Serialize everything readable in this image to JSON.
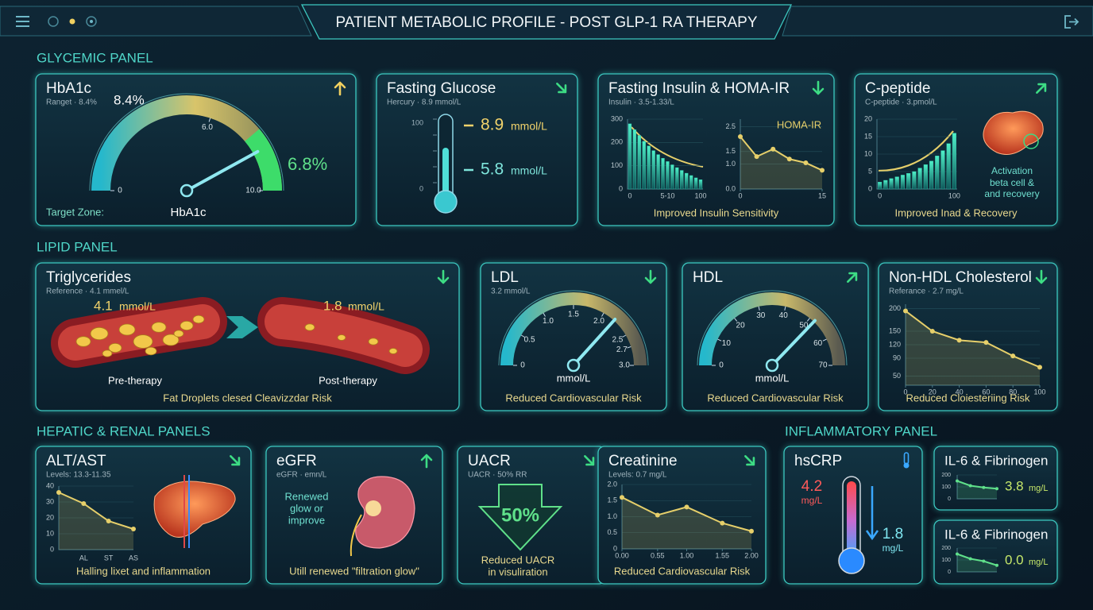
{
  "header": {
    "title": "PATIENT METABOLIC PROFILE - POST GLP-1 RA THERAPY"
  },
  "sections": [
    "GLYCEMIC PANEL",
    "LIPID PANEL",
    "HEPATIC & RENAL PANELS",
    "INFLAMMATORY PANEL"
  ],
  "cards": [
    {
      "title": "HbA1c",
      "subtitle": "Ranget · 8.4%",
      "labels": [
        "Target Zone:",
        "HbA1c"
      ],
      "charts": [
        {
          "type": "gauge",
          "ylim": [
            0,
            10
          ],
          "yticks": [
            0,
            {
              "value": 6,
              "label": "6.0"
            },
            {
              "value": 10,
              "label": "10.0"
            }
          ],
          "values": [
            8.4,
            6.8
          ],
          "value_labels": [
            "8.4%",
            "6.8%"
          ],
          "color": "#8fe8f0"
        }
      ]
    },
    {
      "title": "Fasting Glucose",
      "subtitle": "Hercury · 8.9 mmol/L",
      "labels": [
        "100",
        "0"
      ],
      "readings": [
        {
          "value": "8.9",
          "unit": "mmol/L"
        },
        {
          "value": "5.8",
          "unit": "mmol/L"
        }
      ]
    },
    {
      "title": "Fasting Insulin & HOMA-IR",
      "subtitle": "Insulin · 3.5-1.33/L",
      "footer": "Improved Insulin Sensitivity",
      "charts": [
        {
          "type": "bar",
          "categories": [
            "0",
            null,
            null,
            null,
            null,
            null,
            null,
            null,
            "5-10",
            null,
            null,
            null,
            null,
            null,
            null,
            "100"
          ],
          "values": [
            280,
            255,
            230,
            205,
            185,
            165,
            148,
            132,
            118,
            104,
            92,
            80,
            68,
            58,
            48,
            40
          ],
          "ylim": [
            0,
            300
          ],
          "yticks": [
            0,
            100,
            200,
            300
          ],
          "color": "#2fc2a8"
        },
        {
          "type": "line",
          "title": "HOMA-IR",
          "x": [
            0,
            3,
            6,
            9,
            12,
            15
          ],
          "values": [
            2.1,
            1.3,
            1.6,
            1.2,
            1.05,
            0.75
          ],
          "xlim": [
            0,
            15
          ],
          "xticks": [
            0,
            15
          ],
          "ylim": [
            0,
            2.8
          ],
          "yticks": [
            {
              "value": 0,
              "label": "0.0"
            },
            {
              "value": 1,
              "label": "1.0"
            },
            1.5,
            2.5
          ],
          "color": "#e6cf6a"
        }
      ]
    },
    {
      "title": "C-peptide",
      "subtitle": "C-peptide · 3.pmol/L",
      "labels": [
        "Activation",
        "beta cell &",
        "and recovery"
      ],
      "footer": "Improved Inad & Recovery",
      "charts": [
        {
          "type": "bar",
          "categories": [
            "0",
            null,
            null,
            null,
            null,
            null,
            null,
            null,
            null,
            null,
            null,
            null,
            null,
            "100"
          ],
          "values": [
            2,
            2.5,
            3,
            3.5,
            4,
            4.5,
            5,
            6,
            7,
            8,
            9.5,
            11,
            13,
            16
          ],
          "ylim": [
            0,
            20
          ],
          "yticks": [
            0,
            5,
            10,
            15,
            20
          ],
          "color": "#2fc2a8"
        }
      ]
    },
    {
      "title": "Triglycerides",
      "subtitle": "Reference · 4.1 mmel/L",
      "labels": [
        "Pre-therapy",
        "Post-therapy"
      ],
      "footer": "Fat Droplets clesed Cleavizzdar Risk",
      "readings": [
        {
          "value": "4.1",
          "unit": "mmol/L"
        },
        {
          "value": "1.8",
          "unit": "mmol/L"
        }
      ]
    },
    {
      "title": "LDL",
      "subtitle": "3.2 mmol/L",
      "labels": [
        "mmol/L"
      ],
      "footer": "Reduced Cardiovascular Risk",
      "charts": [
        {
          "type": "gauge",
          "ylim": [
            0,
            3
          ],
          "yticks": [
            0,
            0.5,
            {
              "value": 1,
              "label": "1.0"
            },
            1.5,
            {
              "value": 2,
              "label": "2.0"
            },
            2.5,
            2.7,
            {
              "value": 3,
              "label": "3.0"
            }
          ],
          "values": [
            2.2
          ],
          "color": "#8fe8f0"
        }
      ]
    },
    {
      "title": "HDL",
      "labels": [
        "mmol/L"
      ],
      "footer": "Reduced Cardiovascular Risk",
      "charts": [
        {
          "type": "gauge",
          "ylim": [
            0,
            70
          ],
          "yticks": [
            0,
            10,
            20,
            30,
            40,
            50,
            60,
            70
          ],
          "values": [
            52
          ],
          "color": "#8fe8f0"
        }
      ]
    },
    {
      "title": "Non-HDL Cholesterol",
      "subtitle": "Referance · 2.7 mg/L",
      "footer": "Reduced Cloiesteriing Risk",
      "charts": [
        {
          "type": "line",
          "x": [
            0,
            20,
            40,
            60,
            80,
            100
          ],
          "values": [
            195,
            150,
            130,
            125,
            95,
            70
          ],
          "xlim": [
            0,
            100
          ],
          "xticks": [
            0,
            20,
            40,
            60,
            80,
            100
          ],
          "ylim": [
            30,
            210
          ],
          "yticks": [
            50,
            90,
            120,
            150,
            200
          ],
          "color": "#e6cf6a"
        }
      ]
    },
    {
      "title": "ALT/AST",
      "subtitle": "Levels: 13.3-11.35",
      "footer": "Halling lixet and inflammation",
      "charts": [
        {
          "type": "line",
          "categories": [
            null,
            "AL",
            "ST",
            "AS"
          ],
          "values": [
            36,
            29,
            18,
            13
          ],
          "ylim": [
            0,
            40
          ],
          "yticks": [
            0,
            10,
            20,
            30,
            40
          ],
          "color": "#e6cf6a"
        }
      ]
    },
    {
      "title": "eGFR",
      "subtitle": "eGFR · emn/L",
      "labels": [
        "Renewed",
        "glow or",
        "improve"
      ],
      "footer": "Utill renewed \"filtration glow\""
    },
    {
      "title": "UACR",
      "subtitle": "UACR · 50% RR",
      "labels": [
        "50%",
        "Reduced UACR",
        "in visuliration"
      ]
    },
    {
      "title": "Creatinine",
      "subtitle": "Levels: 0.7 mg/L",
      "footer": "Reduced Cardiovascular Risk",
      "charts": [
        {
          "type": "line",
          "x": [
            0,
            0.55,
            1,
            1.55,
            2
          ],
          "values": [
            1.6,
            1.05,
            1.3,
            0.8,
            0.55
          ],
          "xlim": [
            0,
            2
          ],
          "xticks": [
            {
              "value": 0,
              "label": "0.00"
            },
            0.55,
            {
              "value": 1,
              "label": "1.00"
            },
            1.55,
            {
              "value": 2,
              "label": "2.00"
            }
          ],
          "ylim": [
            0,
            2
          ],
          "yticks": [
            0,
            0.5,
            {
              "value": 1,
              "label": "1.0"
            },
            1.5,
            {
              "value": 2,
              "label": "2.0"
            }
          ],
          "color": "#e6cf6a"
        }
      ]
    },
    {
      "title": "hsCRP",
      "readings": [
        {
          "value": "4.2",
          "unit": "mg/L"
        },
        {
          "value": "1.8",
          "unit": "mg/L"
        }
      ]
    },
    {
      "title": "IL-6 & Fibrinogen",
      "readings": [
        {
          "value": "3.8",
          "unit": "mg/L"
        }
      ],
      "charts": [
        {
          "type": "line",
          "categories": [
            null,
            null,
            null,
            null
          ],
          "values": [
            150,
            110,
            95,
            85
          ],
          "ylim": [
            0,
            200
          ],
          "yticks": [
            0,
            100,
            200
          ],
          "color": "#5fe08a"
        }
      ]
    },
    {
      "title": "IL-6 & Fibrinogen",
      "readings": [
        {
          "value": "0.0",
          "unit": "mg/L"
        }
      ],
      "charts": [
        {
          "type": "line",
          "categories": [
            null,
            null,
            null,
            null
          ],
          "values": [
            150,
            110,
            90,
            55
          ],
          "ylim": [
            0,
            200
          ],
          "yticks": [
            0,
            100,
            200
          ],
          "color": "#5fe08a"
        }
      ]
    }
  ]
}
